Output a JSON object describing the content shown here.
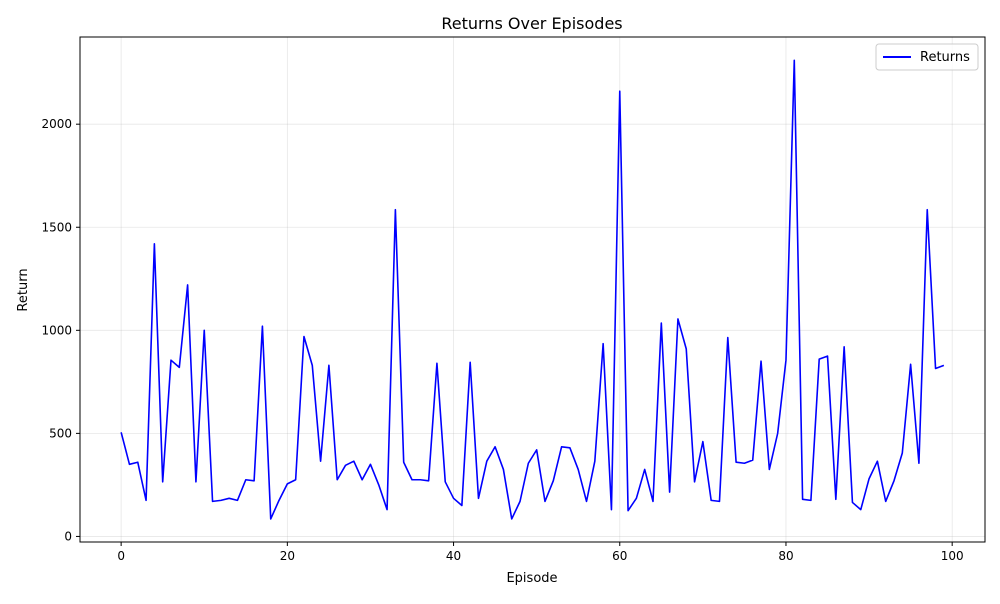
{
  "chart_data": {
    "type": "line",
    "title": "Returns Over Episodes",
    "xlabel": "Episode",
    "ylabel": "Return",
    "xlim": [
      -4.95,
      103.95
    ],
    "ylim": [
      -27,
      2423
    ],
    "xticks": [
      0,
      20,
      40,
      60,
      80,
      100
    ],
    "yticks": [
      0,
      500,
      1000,
      1500,
      2000
    ],
    "xtick_labels": [
      "0",
      "20",
      "40",
      "60",
      "80",
      "100"
    ],
    "ytick_labels": [
      "0",
      "500",
      "1000",
      "1500",
      "2000"
    ],
    "grid": true,
    "legend_position": "top-right",
    "series": [
      {
        "name": "Returns",
        "color": "#0000ff",
        "x": [
          0,
          1,
          2,
          3,
          4,
          5,
          6,
          7,
          8,
          9,
          10,
          11,
          12,
          13,
          14,
          15,
          16,
          17,
          18,
          19,
          20,
          21,
          22,
          23,
          24,
          25,
          26,
          27,
          28,
          29,
          30,
          31,
          32,
          33,
          34,
          35,
          36,
          37,
          38,
          39,
          40,
          41,
          42,
          43,
          44,
          45,
          46,
          47,
          48,
          49,
          50,
          51,
          52,
          53,
          54,
          55,
          56,
          57,
          58,
          59,
          60,
          61,
          62,
          63,
          64,
          65,
          66,
          67,
          68,
          69,
          70,
          71,
          72,
          73,
          74,
          75,
          76,
          77,
          78,
          79,
          80,
          81,
          82,
          83,
          84,
          85,
          86,
          87,
          88,
          89,
          90,
          91,
          92,
          93,
          94,
          95,
          96,
          97,
          98,
          99
        ],
        "values": [
          505,
          350,
          360,
          175,
          1420,
          265,
          855,
          820,
          1220,
          265,
          1000,
          170,
          175,
          185,
          175,
          275,
          270,
          1020,
          85,
          175,
          255,
          275,
          970,
          830,
          365,
          830,
          275,
          345,
          365,
          275,
          350,
          250,
          130,
          1585,
          360,
          275,
          275,
          270,
          840,
          265,
          185,
          150,
          845,
          185,
          365,
          435,
          325,
          85,
          170,
          355,
          420,
          170,
          270,
          435,
          430,
          325,
          170,
          365,
          935,
          130,
          2160,
          125,
          185,
          325,
          170,
          1035,
          215,
          1055,
          910,
          265,
          460,
          175,
          170,
          965,
          360,
          355,
          370,
          850,
          325,
          500,
          855,
          2310,
          180,
          175,
          860,
          875,
          180,
          920,
          165,
          130,
          280,
          365,
          170,
          270,
          405,
          835,
          355,
          1585,
          815,
          830
        ]
      }
    ]
  }
}
